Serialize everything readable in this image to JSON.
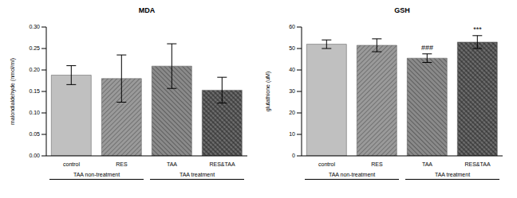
{
  "chart_data": [
    {
      "type": "bar",
      "title": "MDA",
      "y_label": "malondialdehyde (nmol/ml)",
      "categories": [
        "control",
        "RES",
        "TAA",
        "RES&TAA"
      ],
      "values": [
        0.188,
        0.18,
        0.209,
        0.153
      ],
      "errors": [
        0.022,
        0.055,
        0.052,
        0.03
      ],
      "colors": [
        "#c0c0c0",
        "#9a9a9a",
        "#8a8a8a",
        "#6e6e6e"
      ],
      "ylim": [
        0,
        0.3
      ],
      "yticks": [
        {
          "value": 0,
          "label": "0.00"
        },
        {
          "value": 0.05,
          "label": "0.05"
        },
        {
          "value": 0.1,
          "label": "0.10"
        },
        {
          "value": 0.15,
          "label": "0.15"
        },
        {
          "value": 0.2,
          "label": "0.20"
        },
        {
          "value": 0.25,
          "label": "0.25"
        },
        {
          "value": 0.3,
          "label": "0.30"
        }
      ],
      "groups": [
        {
          "label": "TAA non-treatment",
          "categories": [
            "control",
            "RES"
          ]
        },
        {
          "label": "TAA treatment",
          "categories": [
            "TAA",
            "RES&TAA"
          ]
        }
      ]
    },
    {
      "type": "bar",
      "title": "GSH",
      "y_label": "glutathione (uM)",
      "categories": [
        "control",
        "RES",
        "TAA",
        "RES&TAA"
      ],
      "values": [
        52,
        51.5,
        45.5,
        53
      ],
      "errors": [
        2,
        3,
        2,
        3
      ],
      "colors": [
        "#c0c0c0",
        "#9a9a9a",
        "#8a8a8a",
        "#6e6e6e"
      ],
      "annotations": [
        null,
        null,
        "###",
        "***"
      ],
      "ylim": [
        0,
        60
      ],
      "yticks": [
        0,
        10,
        20,
        30,
        40,
        50,
        60
      ],
      "groups": [
        {
          "label": "TAA non-treatment",
          "categories": [
            "control",
            "RES"
          ]
        },
        {
          "label": "TAA treatment",
          "categories": [
            "TAA",
            "RES&TAA"
          ]
        }
      ]
    }
  ]
}
